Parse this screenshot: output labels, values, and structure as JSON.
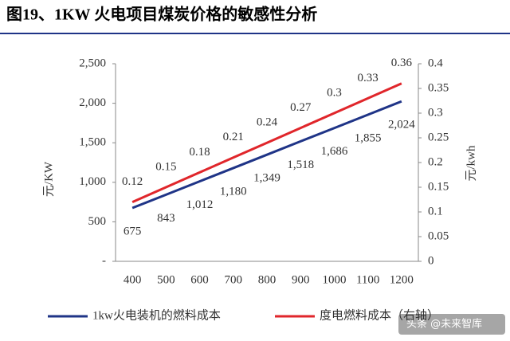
{
  "chart_data": {
    "type": "line",
    "title": "图19、1KW 火电项目煤炭价格的敏感性分析",
    "categories": [
      "400",
      "500",
      "600",
      "700",
      "800",
      "900",
      "1000",
      "1100",
      "1200"
    ],
    "series": [
      {
        "name": "1kw火电装机的燃料成本",
        "color": "#1f3487",
        "values": [
          675,
          843,
          1012,
          1180,
          1349,
          1518,
          1686,
          1855,
          2024
        ],
        "value_labels": [
          "675",
          "843",
          "1,012",
          "1,180",
          "1,349",
          "1,518",
          "1,686",
          "1,855",
          "2,024"
        ]
      },
      {
        "name": "度电燃料成本（右轴）",
        "color": "#e0262b",
        "axis": "y2",
        "values": [
          0.12,
          0.15,
          0.18,
          0.21,
          0.24,
          0.27,
          0.3,
          0.33,
          0.36
        ]
      }
    ],
    "ylabel": "元/KW",
    "y2label": "元/kwh",
    "ylim": [
      0,
      2500
    ],
    "yticks": [
      {
        "value": 0,
        "label": "-"
      },
      500,
      {
        "value": 1000,
        "label": "1,000"
      },
      {
        "value": 1500,
        "label": "1,500"
      },
      {
        "value": 2000,
        "label": "2,000"
      },
      {
        "value": 2500,
        "label": "2,500"
      }
    ],
    "y2lim": [
      0,
      0.4
    ],
    "y2ticks": [
      0,
      0.05,
      0.1,
      0.15,
      0.2,
      0.25,
      0.3,
      0.35,
      0.4
    ],
    "watermark": "头条 @未来智库"
  }
}
